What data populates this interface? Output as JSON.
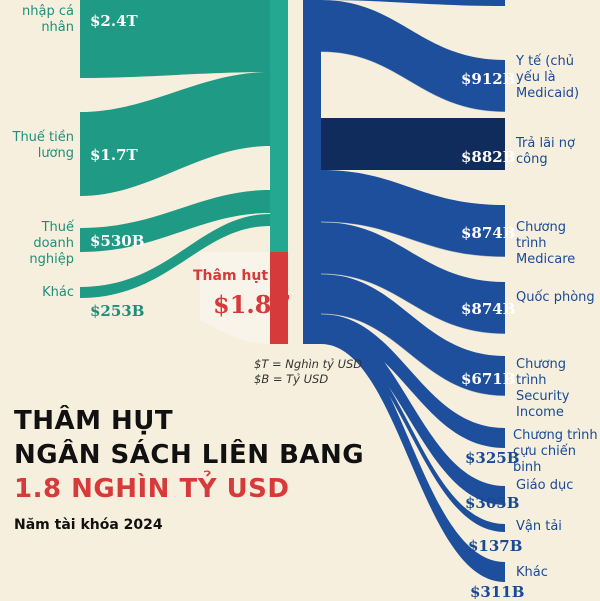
{
  "title": {
    "line1": "THÂM HỤT",
    "line2": "NGÂN SÁCH LIÊN BANG",
    "line3": "1.8 NGHÌN TỶ USD",
    "subtitle": "Năm tài khóa 2024"
  },
  "legend": {
    "t": "$T = Nghìn tỷ USD",
    "b": "$B = Tỷ USD"
  },
  "deficit": {
    "label": "Thâm hụt",
    "value": "$1.8T"
  },
  "sources": [
    {
      "label": "Thuế thu nhập cá nhân",
      "value": "$2.4T"
    },
    {
      "label": "Thuế tiền lương",
      "value": "$1.7T"
    },
    {
      "label": "Thuế doanh nghiệp",
      "value": "$530B"
    },
    {
      "label": "Khác",
      "value": "$253B"
    }
  ],
  "destinations": [
    {
      "label": "Y tế (chủ yếu là Medicaid)",
      "value": "$912B"
    },
    {
      "label": "Trả lãi nợ công",
      "value": "$882B"
    },
    {
      "label": "Chương trình Medicare",
      "value": "$874B"
    },
    {
      "label": "Quốc phòng",
      "value": "$874B"
    },
    {
      "label": "Chương trình Security Income",
      "value": "$671B"
    },
    {
      "label": "Chương trình cựu chiến binh",
      "value": "$325B"
    },
    {
      "label": "Giáo dục",
      "value": "$305B"
    },
    {
      "label": "Vận tải",
      "value": "$137B"
    },
    {
      "label": "Khác",
      "value": "$311B"
    }
  ],
  "colors": {
    "background": "#f6efdd",
    "income": "#1f9a85",
    "spending": "#1d4f9c",
    "interest": "#0f2c5c",
    "deficit": "#d63a3a"
  }
}
